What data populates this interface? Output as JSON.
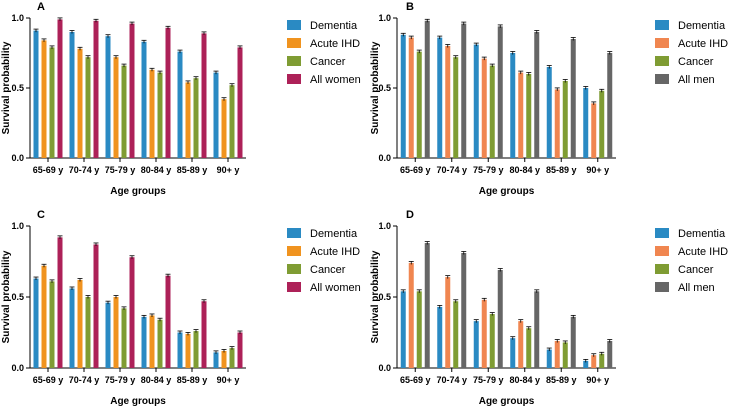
{
  "colors": {
    "dementia": "#2a8ac3",
    "ihd_women": "#f0931f",
    "ihd_men": "#f08650",
    "cancer": "#7f9c33",
    "all_women": "#ad2158",
    "all_men": "#666666"
  },
  "chart_data": [
    {
      "panel": "A",
      "type": "bar",
      "xlabel": "Age groups",
      "ylabel": "Survival probability",
      "yticks": [
        "0.0",
        "0.5",
        "1.0"
      ],
      "ylim": [
        0,
        1.0
      ],
      "categories": [
        "65-69 y",
        "70-74 y",
        "75-79 y",
        "80-84 y",
        "85-89 y",
        "90+ y"
      ],
      "series": [
        {
          "name": "Dementia",
          "color_key": "dementia",
          "values": [
            0.91,
            0.9,
            0.87,
            0.83,
            0.76,
            0.61
          ]
        },
        {
          "name": "Acute IHD",
          "color_key": "ihd_women",
          "values": [
            0.84,
            0.78,
            0.72,
            0.63,
            0.54,
            0.42
          ]
        },
        {
          "name": "Cancer",
          "color_key": "cancer",
          "values": [
            0.79,
            0.72,
            0.66,
            0.61,
            0.57,
            0.52
          ]
        },
        {
          "name": "All women",
          "color_key": "all_women",
          "values": [
            0.99,
            0.98,
            0.96,
            0.93,
            0.89,
            0.79
          ]
        }
      ]
    },
    {
      "panel": "B",
      "type": "bar",
      "xlabel": "Age groups",
      "ylabel": "Survival probability",
      "yticks": [
        "0.0",
        "0.5",
        "1.0"
      ],
      "ylim": [
        0,
        1.0
      ],
      "categories": [
        "65-69 y",
        "70-74 y",
        "75-79 y",
        "80-84 y",
        "85-89 y",
        "90+ y"
      ],
      "series": [
        {
          "name": "Dementia",
          "color_key": "dementia",
          "values": [
            0.88,
            0.86,
            0.81,
            0.75,
            0.65,
            0.5
          ]
        },
        {
          "name": "Acute IHD",
          "color_key": "ihd_men",
          "values": [
            0.86,
            0.8,
            0.71,
            0.61,
            0.49,
            0.39
          ]
        },
        {
          "name": "Cancer",
          "color_key": "cancer",
          "values": [
            0.76,
            0.72,
            0.66,
            0.6,
            0.55,
            0.48
          ]
        },
        {
          "name": "All men",
          "color_key": "all_men",
          "values": [
            0.98,
            0.96,
            0.94,
            0.9,
            0.85,
            0.75
          ]
        }
      ]
    },
    {
      "panel": "C",
      "type": "bar",
      "xlabel": "Age groups",
      "ylabel": "Survival probability",
      "yticks": [
        "0.0",
        "0.5",
        "1.0"
      ],
      "ylim": [
        0,
        1.0
      ],
      "categories": [
        "65-69 y",
        "70-74 y",
        "75-79 y",
        "80-84 y",
        "85-89 y",
        "90+ y"
      ],
      "series": [
        {
          "name": "Dementia",
          "color_key": "dementia",
          "values": [
            0.63,
            0.56,
            0.46,
            0.36,
            0.25,
            0.11
          ]
        },
        {
          "name": "Acute IHD",
          "color_key": "ihd_women",
          "values": [
            0.72,
            0.62,
            0.5,
            0.37,
            0.24,
            0.12
          ]
        },
        {
          "name": "Cancer",
          "color_key": "cancer",
          "values": [
            0.61,
            0.5,
            0.42,
            0.34,
            0.26,
            0.14
          ]
        },
        {
          "name": "All women",
          "color_key": "all_women",
          "values": [
            0.92,
            0.87,
            0.78,
            0.65,
            0.47,
            0.25
          ]
        }
      ]
    },
    {
      "panel": "D",
      "type": "bar",
      "xlabel": "Age groups",
      "ylabel": "Survival probability",
      "yticks": [
        "0.0",
        "0.5",
        "1.0"
      ],
      "ylim": [
        0,
        1.0
      ],
      "categories": [
        "65-69 y",
        "70-74 y",
        "75-79 y",
        "80-84 y",
        "85-89 y",
        "90+ y"
      ],
      "series": [
        {
          "name": "Dementia",
          "color_key": "dementia",
          "values": [
            0.54,
            0.43,
            0.33,
            0.21,
            0.13,
            0.05
          ]
        },
        {
          "name": "Acute IHD",
          "color_key": "ihd_men",
          "values": [
            0.74,
            0.64,
            0.48,
            0.33,
            0.19,
            0.09
          ]
        },
        {
          "name": "Cancer",
          "color_key": "cancer",
          "values": [
            0.54,
            0.47,
            0.38,
            0.28,
            0.18,
            0.1
          ]
        },
        {
          "name": "All men",
          "color_key": "all_men",
          "values": [
            0.88,
            0.81,
            0.69,
            0.54,
            0.36,
            0.19
          ]
        }
      ]
    }
  ]
}
